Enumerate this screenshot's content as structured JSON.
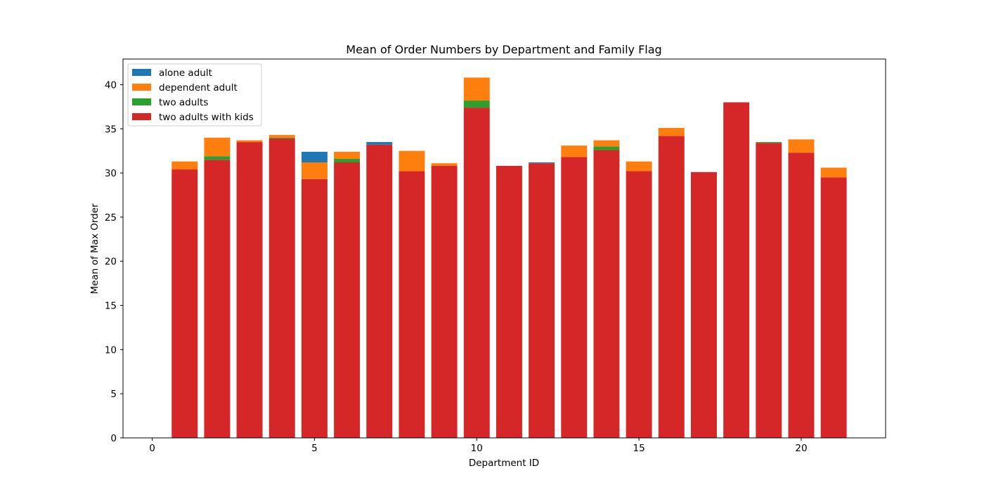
{
  "chart_data": {
    "type": "bar",
    "stacked": true,
    "title": "Mean of Order Numbers by Department and Family Flag",
    "xlabel": "Department ID",
    "ylabel": "Mean of Max Order",
    "xlim": [
      -0.9,
      22.6
    ],
    "ylim": [
      0,
      42.9
    ],
    "xticks": [
      "0",
      "5",
      "10",
      "15",
      "20"
    ],
    "yticks": [
      "0",
      "5",
      "10",
      "15",
      "20",
      "25",
      "30",
      "35",
      "40"
    ],
    "grid": false,
    "legend_position": "top-left",
    "categories": [
      1,
      2,
      3,
      4,
      5,
      6,
      7,
      8,
      9,
      10,
      11,
      12,
      13,
      14,
      15,
      16,
      17,
      18,
      19,
      20,
      21
    ],
    "series": [
      {
        "name": "two adults with kids",
        "color": "#d62728",
        "values": [
          30.4,
          31.5,
          33.5,
          33.9,
          29.3,
          31.2,
          33.2,
          30.2,
          30.8,
          37.4,
          30.8,
          31.1,
          31.8,
          32.6,
          30.2,
          34.2,
          30.1,
          38.0,
          33.4,
          32.3,
          29.5
        ]
      },
      {
        "name": "two adults",
        "color": "#2ca02c",
        "values": [
          0.0,
          0.4,
          0.0,
          0.1,
          0.0,
          0.4,
          0.0,
          0.0,
          0.0,
          0.8,
          0.0,
          0.0,
          0.0,
          0.4,
          0.0,
          0.0,
          0.0,
          0.0,
          0.1,
          0.0,
          0.0
        ]
      },
      {
        "name": "dependent adult",
        "color": "#ff7f0e",
        "values": [
          0.9,
          2.1,
          0.2,
          0.3,
          1.9,
          0.8,
          0.0,
          2.3,
          0.3,
          2.6,
          0.0,
          0.0,
          1.3,
          0.7,
          1.1,
          0.9,
          0.0,
          0.0,
          0.0,
          1.5,
          1.1
        ]
      },
      {
        "name": "alone adult",
        "color": "#1f77b4",
        "values": [
          0.0,
          0.0,
          0.0,
          0.0,
          1.2,
          0.0,
          0.3,
          0.0,
          0.0,
          0.0,
          0.0,
          0.1,
          0.0,
          0.0,
          0.0,
          0.0,
          0.0,
          0.0,
          0.0,
          0.0,
          0.0
        ]
      }
    ],
    "legend": [
      {
        "name": "alone adult",
        "color": "#1f77b4"
      },
      {
        "name": "dependent adult",
        "color": "#ff7f0e"
      },
      {
        "name": "two adults",
        "color": "#2ca02c"
      },
      {
        "name": "two adults with kids",
        "color": "#d62728"
      }
    ]
  }
}
